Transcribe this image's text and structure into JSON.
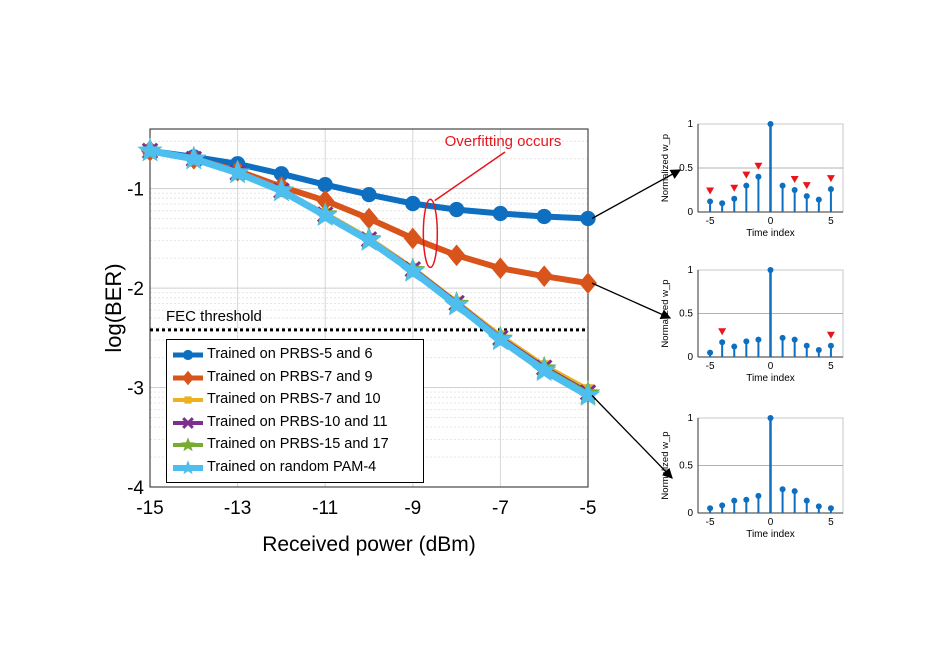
{
  "chart_data": [
    {
      "type": "line",
      "xlabel": "Received power (dBm)",
      "ylabel": "log(BER)",
      "x": [
        -15,
        -14,
        -13,
        -12,
        -11,
        -10,
        -9,
        -8,
        -7,
        -6,
        -5
      ],
      "xticks": [
        "-15",
        "-13",
        "-11",
        "-9",
        "-7",
        "-5"
      ],
      "yticks": [
        "-1",
        "-2",
        "-3",
        "-4"
      ],
      "xlim": [
        -15,
        -5
      ],
      "ylim": [
        -4,
        -0.4
      ],
      "grid": true,
      "legend_position": "bottom-left",
      "series": [
        {
          "name": "Trained on PRBS-5 and 6",
          "color": "#0e6fc0",
          "marker": "circle",
          "values": [
            -0.62,
            -0.68,
            -0.75,
            -0.85,
            -0.96,
            -1.06,
            -1.15,
            -1.21,
            -1.25,
            -1.28,
            -1.3
          ]
        },
        {
          "name": "Trained on PRBS-7 and 9",
          "color": "#d9541a",
          "marker": "diamond",
          "values": [
            -0.62,
            -0.7,
            -0.82,
            -0.98,
            -1.12,
            -1.3,
            -1.5,
            -1.67,
            -1.8,
            -1.88,
            -1.95
          ]
        },
        {
          "name": "Trained on PRBS-7 and 10",
          "color": "#edb120",
          "marker": "square",
          "values": [
            -0.62,
            -0.7,
            -0.84,
            -1.02,
            -1.25,
            -1.5,
            -1.8,
            -2.14,
            -2.48,
            -2.78,
            -3.02
          ]
        },
        {
          "name": "Trained on PRBS-10 and 11",
          "color": "#7e2f8e",
          "marker": "x",
          "values": [
            -0.62,
            -0.7,
            -0.84,
            -1.02,
            -1.26,
            -1.51,
            -1.81,
            -2.15,
            -2.5,
            -2.8,
            -3.05
          ]
        },
        {
          "name": "Trained on PRBS-15 and 17",
          "color": "#77ac30",
          "marker": "star",
          "values": [
            -0.62,
            -0.7,
            -0.84,
            -1.02,
            -1.26,
            -1.51,
            -1.82,
            -2.16,
            -2.51,
            -2.81,
            -3.06
          ]
        },
        {
          "name": "Trained on random PAM-4",
          "color": "#4dbeee",
          "marker": "star",
          "values": [
            -0.62,
            -0.7,
            -0.84,
            -1.02,
            -1.27,
            -1.52,
            -1.83,
            -2.17,
            -2.52,
            -2.83,
            -3.08
          ]
        }
      ],
      "fec_threshold": {
        "label": "FEC threshold",
        "value": -2.42
      },
      "annotation": {
        "text": "Overfitting occurs",
        "color": "#e8161c",
        "x": -8.6,
        "y": -1.45
      }
    },
    {
      "type": "stem",
      "xlabel": "Time index",
      "ylabel": "Normalized w_p",
      "xticks": [
        "-5",
        "0",
        "5"
      ],
      "yticks": [
        "0",
        "0.5",
        "1"
      ],
      "x": [
        -5,
        -4,
        -3,
        -2,
        -1,
        0,
        1,
        2,
        3,
        4,
        5
      ],
      "values": [
        0.12,
        0.1,
        0.15,
        0.3,
        0.4,
        1.0,
        0.3,
        0.25,
        0.18,
        0.14,
        0.26
      ],
      "marked_taps": [
        -5,
        -3,
        -2,
        -1,
        2,
        3,
        5
      ],
      "threshold": 0.5
    },
    {
      "type": "stem",
      "xlabel": "Time index",
      "ylabel": "Normalized w_p",
      "xticks": [
        "-5",
        "0",
        "5"
      ],
      "yticks": [
        "0",
        "0.5",
        "1"
      ],
      "x": [
        -5,
        -4,
        -3,
        -2,
        -1,
        0,
        1,
        2,
        3,
        4,
        5
      ],
      "values": [
        0.05,
        0.17,
        0.12,
        0.18,
        0.2,
        1.0,
        0.22,
        0.2,
        0.13,
        0.08,
        0.13
      ],
      "marked_taps": [
        -4,
        5
      ],
      "threshold": 0.5
    },
    {
      "type": "stem",
      "xlabel": "Time index",
      "ylabel": "Normalized w_p",
      "xticks": [
        "-5",
        "0",
        "5"
      ],
      "yticks": [
        "0",
        "0.5",
        "1"
      ],
      "x": [
        -5,
        -4,
        -3,
        -2,
        -1,
        0,
        1,
        2,
        3,
        4,
        5
      ],
      "values": [
        0.05,
        0.08,
        0.13,
        0.14,
        0.18,
        1.0,
        0.25,
        0.23,
        0.13,
        0.07,
        0.05
      ],
      "marked_taps": [],
      "threshold": 0.5
    }
  ],
  "colors": {
    "stem": "#0e6fc0",
    "marker_triangle": "#e8161c"
  }
}
